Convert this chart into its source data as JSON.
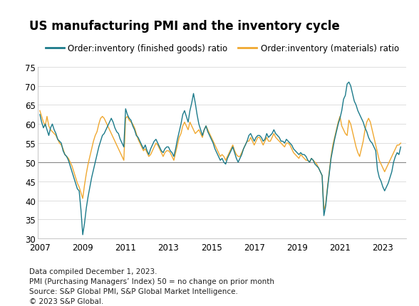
{
  "title": "US manufacturing PMI and the inventory cycle",
  "legend_labels": [
    "Order:inventory (finished goods) ratio",
    "Order:inventory (materials) ratio"
  ],
  "line1_color": "#1b7a8a",
  "line2_color": "#f0a830",
  "hline_value": 50,
  "hline_color": "#888888",
  "ylim": [
    30,
    75
  ],
  "yticks": [
    30,
    35,
    40,
    45,
    50,
    55,
    60,
    65,
    70,
    75
  ],
  "xlim_start": 2006.9,
  "xlim_end": 2024.1,
  "xtick_labels": [
    "2007",
    "2009",
    "2011",
    "2013",
    "2015",
    "2017",
    "2019",
    "2021",
    "2023"
  ],
  "xtick_positions": [
    2007,
    2009,
    2011,
    2013,
    2015,
    2017,
    2019,
    2021,
    2023
  ],
  "footnotes": [
    "Data compiled December 1, 2023.",
    "PMI (Purchasing Managers’ Index) 50 = no change on prior month",
    "Source: S&P Global PMI, S&P Global Market Intelligence.",
    "© 2023 S&P Global."
  ],
  "background_color": "#ffffff",
  "grid_color": "#d0d0d0",
  "title_fontsize": 12,
  "axis_fontsize": 8.5,
  "legend_fontsize": 8.5,
  "footnote_fontsize": 7.5,
  "line_width": 1.0,
  "dates": [
    2007.0,
    2007.083,
    2007.167,
    2007.25,
    2007.333,
    2007.417,
    2007.5,
    2007.583,
    2007.667,
    2007.75,
    2007.833,
    2007.917,
    2008.0,
    2008.083,
    2008.167,
    2008.25,
    2008.333,
    2008.417,
    2008.5,
    2008.583,
    2008.667,
    2008.75,
    2008.833,
    2008.917,
    2009.0,
    2009.083,
    2009.167,
    2009.25,
    2009.333,
    2009.417,
    2009.5,
    2009.583,
    2009.667,
    2009.75,
    2009.833,
    2009.917,
    2010.0,
    2010.083,
    2010.167,
    2010.25,
    2010.333,
    2010.417,
    2010.5,
    2010.583,
    2010.667,
    2010.75,
    2010.833,
    2010.917,
    2011.0,
    2011.083,
    2011.167,
    2011.25,
    2011.333,
    2011.417,
    2011.5,
    2011.583,
    2011.667,
    2011.75,
    2011.833,
    2011.917,
    2012.0,
    2012.083,
    2012.167,
    2012.25,
    2012.333,
    2012.417,
    2012.5,
    2012.583,
    2012.667,
    2012.75,
    2012.833,
    2012.917,
    2013.0,
    2013.083,
    2013.167,
    2013.25,
    2013.333,
    2013.417,
    2013.5,
    2013.583,
    2013.667,
    2013.75,
    2013.833,
    2013.917,
    2014.0,
    2014.083,
    2014.167,
    2014.25,
    2014.333,
    2014.417,
    2014.5,
    2014.583,
    2014.667,
    2014.75,
    2014.833,
    2014.917,
    2015.0,
    2015.083,
    2015.167,
    2015.25,
    2015.333,
    2015.417,
    2015.5,
    2015.583,
    2015.667,
    2015.75,
    2015.833,
    2015.917,
    2016.0,
    2016.083,
    2016.167,
    2016.25,
    2016.333,
    2016.417,
    2016.5,
    2016.583,
    2016.667,
    2016.75,
    2016.833,
    2016.917,
    2017.0,
    2017.083,
    2017.167,
    2017.25,
    2017.333,
    2017.417,
    2017.5,
    2017.583,
    2017.667,
    2017.75,
    2017.833,
    2017.917,
    2018.0,
    2018.083,
    2018.167,
    2018.25,
    2018.333,
    2018.417,
    2018.5,
    2018.583,
    2018.667,
    2018.75,
    2018.833,
    2018.917,
    2019.0,
    2019.083,
    2019.167,
    2019.25,
    2019.333,
    2019.417,
    2019.5,
    2019.583,
    2019.667,
    2019.75,
    2019.833,
    2019.917,
    2020.0,
    2020.083,
    2020.167,
    2020.25,
    2020.333,
    2020.417,
    2020.5,
    2020.583,
    2020.667,
    2020.75,
    2020.833,
    2020.917,
    2021.0,
    2021.083,
    2021.167,
    2021.25,
    2021.333,
    2021.417,
    2021.5,
    2021.583,
    2021.667,
    2021.75,
    2021.833,
    2021.917,
    2022.0,
    2022.083,
    2022.167,
    2022.25,
    2022.333,
    2022.417,
    2022.5,
    2022.583,
    2022.667,
    2022.75,
    2022.833,
    2022.917,
    2023.0,
    2023.083,
    2023.167,
    2023.25,
    2023.333,
    2023.417,
    2023.5,
    2023.583,
    2023.667,
    2023.75,
    2023.833
  ],
  "finished_goods": [
    62.5,
    60.5,
    59.0,
    60.0,
    58.5,
    57.0,
    59.0,
    60.0,
    58.5,
    57.5,
    56.0,
    55.5,
    55.0,
    53.0,
    52.0,
    51.5,
    50.5,
    49.0,
    47.5,
    46.0,
    44.5,
    43.0,
    42.5,
    37.5,
    31.0,
    34.0,
    38.0,
    41.0,
    43.5,
    46.0,
    48.0,
    50.0,
    52.0,
    54.0,
    55.5,
    57.0,
    57.5,
    58.5,
    59.5,
    60.5,
    61.5,
    60.5,
    59.0,
    58.0,
    57.5,
    56.0,
    55.0,
    54.0,
    64.0,
    62.5,
    61.5,
    61.0,
    59.5,
    58.5,
    57.0,
    56.5,
    55.5,
    54.5,
    53.5,
    54.5,
    53.0,
    52.0,
    53.5,
    54.5,
    55.5,
    56.0,
    55.0,
    54.0,
    53.0,
    52.5,
    53.5,
    54.0,
    54.0,
    53.0,
    52.5,
    51.5,
    53.5,
    56.0,
    58.0,
    60.0,
    62.5,
    63.5,
    62.0,
    60.5,
    63.5,
    65.5,
    68.0,
    65.5,
    62.5,
    60.0,
    58.5,
    57.0,
    58.5,
    59.5,
    58.0,
    57.0,
    56.0,
    55.0,
    53.5,
    52.5,
    51.5,
    50.5,
    51.0,
    50.0,
    49.5,
    51.0,
    52.0,
    53.0,
    54.0,
    52.5,
    51.0,
    50.0,
    51.0,
    52.0,
    53.5,
    54.5,
    55.5,
    57.0,
    57.5,
    56.5,
    55.5,
    56.5,
    57.0,
    57.0,
    56.5,
    55.5,
    56.0,
    57.5,
    56.5,
    57.0,
    57.5,
    58.5,
    57.5,
    57.0,
    56.5,
    55.5,
    55.5,
    55.0,
    56.0,
    55.5,
    55.0,
    54.5,
    53.5,
    53.0,
    52.5,
    52.0,
    52.5,
    52.0,
    52.0,
    51.5,
    50.5,
    50.0,
    51.0,
    50.5,
    49.5,
    49.0,
    48.5,
    47.5,
    46.5,
    36.0,
    38.5,
    43.0,
    47.0,
    51.0,
    53.5,
    56.0,
    58.0,
    60.0,
    61.5,
    63.5,
    66.5,
    67.5,
    70.5,
    71.0,
    70.0,
    68.0,
    66.0,
    65.0,
    63.5,
    62.5,
    61.5,
    60.5,
    59.0,
    58.0,
    56.5,
    55.5,
    55.0,
    54.0,
    53.0,
    48.0,
    46.0,
    45.0,
    43.5,
    42.5,
    43.5,
    44.5,
    46.0,
    47.5,
    50.0,
    51.5,
    52.5,
    52.0,
    54.0
  ],
  "materials": [
    63.5,
    62.0,
    60.5,
    59.5,
    62.0,
    59.5,
    58.5,
    58.0,
    57.5,
    57.0,
    56.0,
    55.0,
    54.5,
    53.5,
    52.0,
    51.5,
    51.0,
    50.0,
    49.0,
    47.5,
    46.0,
    44.5,
    43.5,
    42.0,
    40.5,
    44.0,
    47.0,
    49.5,
    51.5,
    53.5,
    55.5,
    57.0,
    58.0,
    60.0,
    61.5,
    62.0,
    61.5,
    60.5,
    59.5,
    58.5,
    57.5,
    56.5,
    55.5,
    54.5,
    53.5,
    52.5,
    51.5,
    50.5,
    61.5,
    62.0,
    61.0,
    60.5,
    60.0,
    59.0,
    57.5,
    56.0,
    55.0,
    54.0,
    53.0,
    53.5,
    52.5,
    51.5,
    52.0,
    53.0,
    54.0,
    55.0,
    54.5,
    53.5,
    52.5,
    51.5,
    52.5,
    53.0,
    53.0,
    52.5,
    51.5,
    50.5,
    52.5,
    54.5,
    56.5,
    57.5,
    59.5,
    60.5,
    59.5,
    58.5,
    60.5,
    59.5,
    58.5,
    57.5,
    58.0,
    58.5,
    57.5,
    56.5,
    58.5,
    59.5,
    58.5,
    57.5,
    56.5,
    55.5,
    54.5,
    53.5,
    52.5,
    51.5,
    52.0,
    51.5,
    50.5,
    51.5,
    52.5,
    53.5,
    54.5,
    53.0,
    52.0,
    51.5,
    51.5,
    52.5,
    53.5,
    54.5,
    55.5,
    55.5,
    56.5,
    55.5,
    54.5,
    55.5,
    56.5,
    56.5,
    55.5,
    54.5,
    55.5,
    56.5,
    55.5,
    55.5,
    56.5,
    57.5,
    56.5,
    56.0,
    55.5,
    55.0,
    54.5,
    54.0,
    55.0,
    55.0,
    54.5,
    53.5,
    52.5,
    52.0,
    51.5,
    51.0,
    52.0,
    51.5,
    51.0,
    50.5,
    50.5,
    50.0,
    51.0,
    50.5,
    50.0,
    49.5,
    48.5,
    47.5,
    46.5,
    37.5,
    39.0,
    43.5,
    47.5,
    51.5,
    54.5,
    56.5,
    58.5,
    60.5,
    62.0,
    59.5,
    58.5,
    57.5,
    57.0,
    61.0,
    60.0,
    58.0,
    56.0,
    54.0,
    52.5,
    51.5,
    53.5,
    55.5,
    58.5,
    60.5,
    61.5,
    60.5,
    58.5,
    56.5,
    54.5,
    52.5,
    50.5,
    49.5,
    48.5,
    47.5,
    48.5,
    49.5,
    50.5,
    51.5,
    52.5,
    53.5,
    54.5,
    54.5,
    55.0
  ]
}
